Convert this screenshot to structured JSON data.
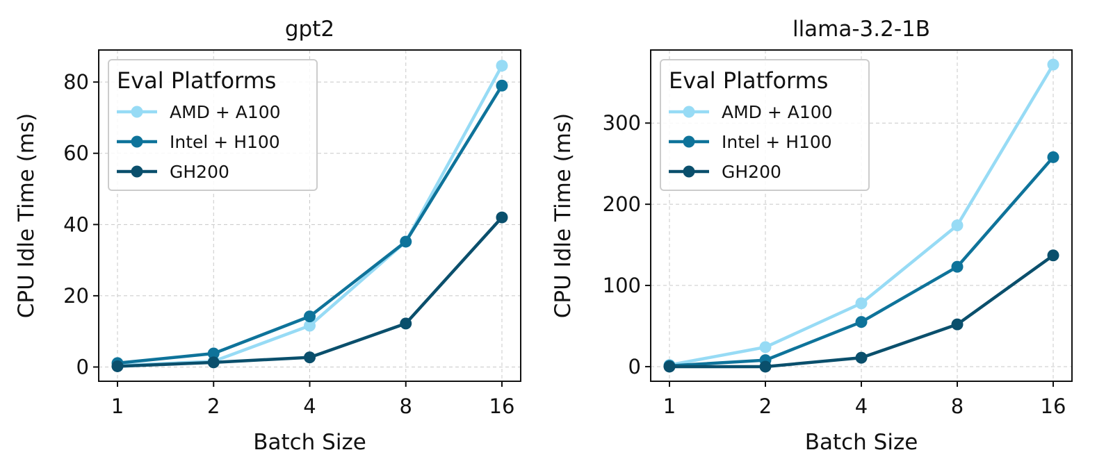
{
  "chart_data": [
    {
      "type": "line",
      "title": "gpt2",
      "xlabel": "Batch Size",
      "ylabel": "CPU Idle Time (ms)",
      "categories": [
        "1",
        "2",
        "4",
        "8",
        "16"
      ],
      "ylim": [
        -4,
        89
      ],
      "yticks": [
        0,
        20,
        40,
        60,
        80
      ],
      "legend_title": "Eval Platforms",
      "legend_position": "top-left",
      "grid": true,
      "series": [
        {
          "name": "AMD + A100",
          "color": "#97dbf5",
          "values": [
            0.4,
            1.6,
            11.6,
            35.2,
            84.6
          ]
        },
        {
          "name": "Intel + H100",
          "color": "#0e739a",
          "values": [
            1.1,
            3.8,
            14.2,
            35.2,
            79.0
          ]
        },
        {
          "name": "GH200",
          "color": "#0a4f6c",
          "values": [
            0.2,
            1.3,
            2.7,
            12.2,
            42.0
          ]
        }
      ]
    },
    {
      "type": "line",
      "title": "llama-3.2-1B",
      "xlabel": "Batch Size",
      "ylabel": "CPU Idle Time (ms)",
      "categories": [
        "1",
        "2",
        "4",
        "8",
        "16"
      ],
      "ylim": [
        -18,
        390
      ],
      "yticks": [
        0,
        100,
        200,
        300
      ],
      "legend_title": "Eval Platforms",
      "legend_position": "top-left",
      "grid": true,
      "series": [
        {
          "name": "AMD + A100",
          "color": "#97dbf5",
          "values": [
            2,
            24,
            78,
            174,
            372
          ]
        },
        {
          "name": "Intel + H100",
          "color": "#0e739a",
          "values": [
            1,
            8,
            55,
            123,
            258
          ]
        },
        {
          "name": "GH200",
          "color": "#0a4f6c",
          "values": [
            0,
            0,
            11,
            52,
            137
          ]
        }
      ]
    }
  ]
}
